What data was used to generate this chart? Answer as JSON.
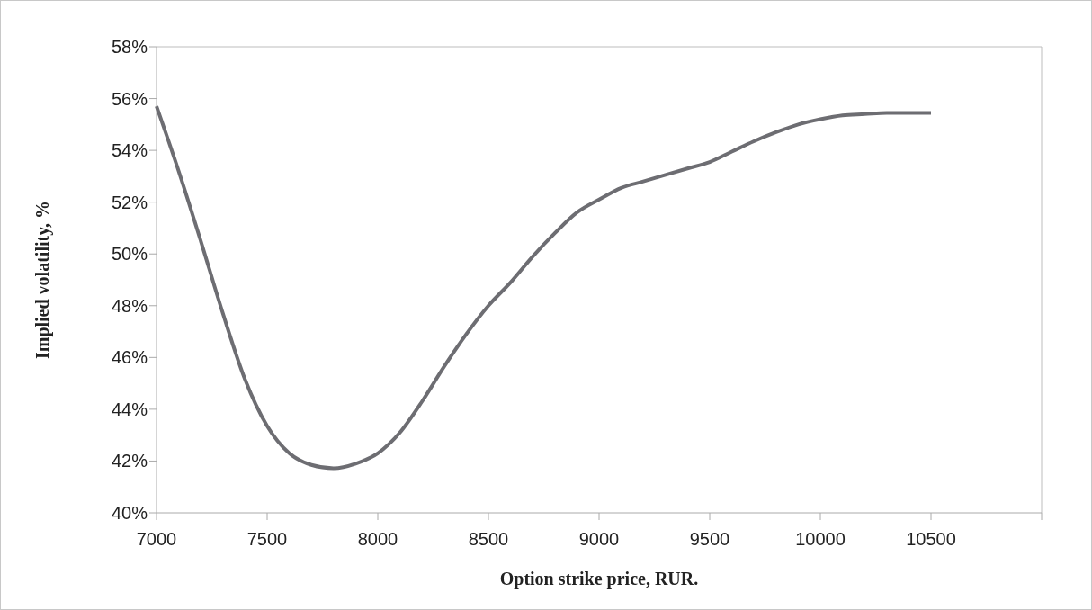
{
  "chart_data": {
    "type": "line",
    "xlabel": "Option strike price, RUR.",
    "ylabel": "Implied volatility, %",
    "x": [
      7000,
      7100,
      7200,
      7300,
      7400,
      7500,
      7600,
      7700,
      7800,
      7900,
      8000,
      8100,
      8200,
      8300,
      8400,
      8500,
      8600,
      8700,
      8800,
      8900,
      9000,
      9100,
      9200,
      9300,
      9400,
      9500,
      9600,
      9700,
      9800,
      9900,
      10000,
      10100,
      10200,
      10300,
      10400,
      10500
    ],
    "series": [
      {
        "color": "#6d6d72",
        "values": [
          55.7,
          53.2,
          50.5,
          47.7,
          45.15,
          43.35,
          42.3,
          41.85,
          41.72,
          41.9,
          42.3,
          43.1,
          44.3,
          45.65,
          46.9,
          48.0,
          48.9,
          49.9,
          50.8,
          51.6,
          52.1,
          52.55,
          52.8,
          53.05,
          53.3,
          53.55,
          53.95,
          54.35,
          54.7,
          55.0,
          55.2,
          55.35,
          55.4,
          55.45,
          55.45,
          55.45
        ]
      }
    ],
    "xlim": [
      7000,
      11000
    ],
    "xticks": [
      7000,
      7500,
      8000,
      8500,
      9000,
      9500,
      10000,
      10500,
      {
        "value": 11000,
        "label": null
      }
    ],
    "ylim": [
      40,
      58
    ],
    "yticks": [
      {
        "value": 40,
        "label": "40%"
      },
      {
        "value": 42,
        "label": "42%"
      },
      {
        "value": 44,
        "label": "44%"
      },
      {
        "value": 46,
        "label": "46%"
      },
      {
        "value": 48,
        "label": "48%"
      },
      {
        "value": 50,
        "label": "50%"
      },
      {
        "value": 52,
        "label": "52%"
      },
      {
        "value": 54,
        "label": "54%"
      },
      {
        "value": 56,
        "label": "56%"
      },
      {
        "value": 58,
        "label": "58%"
      }
    ],
    "grid": false,
    "marker": "none",
    "line_style": "solid"
  }
}
